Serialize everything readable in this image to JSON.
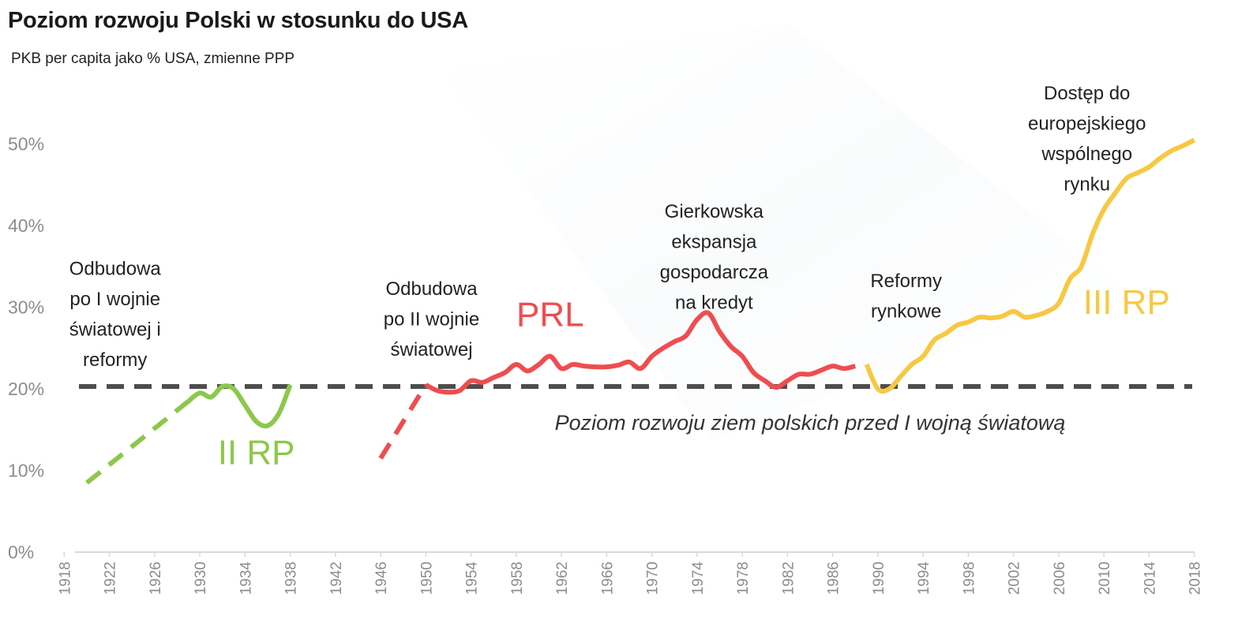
{
  "title": "Poziom rozwoju Polski w stosunku do USA",
  "subtitle": "PKB per capita jako % USA, zmienne PPP",
  "colors": {
    "green": "#8cc84b",
    "red": "#ef4d4f",
    "yellow": "#f8c843",
    "reference": "#4d4d4d",
    "axis": "#d9d9d9",
    "tick": "#8c8c8c"
  },
  "chart_data": {
    "type": "line",
    "ylim": [
      0,
      55
    ],
    "xlim": [
      1917,
      2019
    ],
    "yticks": [
      {
        "value": 0,
        "label": "0%"
      },
      {
        "value": 10,
        "label": "10%"
      },
      {
        "value": 20,
        "label": "20%"
      },
      {
        "value": 30,
        "label": "30%"
      },
      {
        "value": 40,
        "label": "40%"
      },
      {
        "value": 50,
        "label": "50%"
      }
    ],
    "xticks": [
      "1918",
      "1922",
      "1926",
      "1930",
      "1934",
      "1938",
      "1942",
      "1946",
      "1950",
      "1954",
      "1958",
      "1962",
      "1966",
      "1970",
      "1974",
      "1978",
      "1982",
      "1986",
      "1990",
      "1994",
      "1998",
      "2002",
      "2006",
      "2010",
      "2014",
      "2018"
    ],
    "reference_line": {
      "value": 20.3,
      "label": "Poziom rozwoju ziem polskich przed I wojną światową"
    },
    "series": [
      {
        "name": "II RP",
        "color": "green",
        "style": "dashed",
        "x": [
          1920,
          1929
        ],
        "y": [
          8.5,
          18.5
        ]
      },
      {
        "name": "II RP",
        "color": "green",
        "style": "solid",
        "x": [
          1929,
          1930,
          1931,
          1932,
          1933,
          1934,
          1935,
          1936,
          1937,
          1938
        ],
        "y": [
          18.5,
          19.5,
          19,
          20.3,
          20,
          18,
          16,
          15.5,
          17,
          20.5
        ]
      },
      {
        "name": "PRL",
        "color": "red",
        "style": "dashed",
        "x": [
          1946,
          1950
        ],
        "y": [
          11.5,
          20.5
        ]
      },
      {
        "name": "PRL",
        "color": "red",
        "style": "solid",
        "x": [
          1950,
          1951,
          1952,
          1953,
          1954,
          1955,
          1956,
          1957,
          1958,
          1959,
          1960,
          1961,
          1962,
          1963,
          1964,
          1965,
          1966,
          1967,
          1968,
          1969,
          1970,
          1971,
          1972,
          1973,
          1974,
          1975,
          1976,
          1977,
          1978,
          1979,
          1980,
          1981,
          1982,
          1983,
          1984,
          1985,
          1986,
          1987,
          1988
        ],
        "y": [
          20.5,
          19.8,
          19.6,
          19.8,
          21,
          20.8,
          21.4,
          22,
          23,
          22.2,
          23,
          24,
          22.5,
          23,
          22.8,
          22.7,
          22.7,
          22.9,
          23.3,
          22.5,
          24,
          25,
          25.8,
          26.5,
          28.5,
          29.3,
          27,
          25.2,
          24,
          22,
          21,
          20.2,
          21,
          21.8,
          21.8,
          22.3,
          22.8,
          22.5,
          22.8
        ]
      },
      {
        "name": "III RP",
        "color": "yellow",
        "style": "solid",
        "x": [
          1989,
          1990,
          1991,
          1992,
          1993,
          1994,
          1995,
          1996,
          1997,
          1998,
          1999,
          2000,
          2001,
          2002,
          2003,
          2004,
          2005,
          2006,
          2007,
          2008,
          2009,
          2010,
          2011,
          2012,
          2013,
          2014,
          2015,
          2016,
          2017,
          2018
        ],
        "y": [
          23,
          20,
          20,
          21.5,
          23,
          24,
          26,
          26.8,
          27.8,
          28.2,
          28.8,
          28.7,
          28.9,
          29.5,
          28.8,
          29,
          29.5,
          30.5,
          33.5,
          35,
          39,
          42,
          44,
          45.8,
          46.5,
          47.2,
          48.3,
          49.2,
          49.8,
          50.5
        ]
      }
    ],
    "era_labels": [
      {
        "text": "II RP",
        "color": "green",
        "x": 1935,
        "y": 10.8
      },
      {
        "text": "PRL",
        "color": "red",
        "x": 1961,
        "y": 27.7
      },
      {
        "text": "III RP",
        "color": "yellow",
        "x": 2012,
        "y": 29.2
      }
    ],
    "annotations": [
      {
        "lines": [
          "Odbudowa",
          "po I wojnie",
          "światowej i",
          "reformy"
        ],
        "x": 1922.5,
        "y": 34
      },
      {
        "lines": [
          "Odbudowa",
          "po II wojnie",
          "światowej"
        ],
        "x": 1950.5,
        "y": 31.5
      },
      {
        "lines": [
          "Gierkowska",
          "ekspansja",
          "gospodarcza",
          "na kredyt"
        ],
        "x": 1975.5,
        "y": 41
      },
      {
        "lines": [
          "Reformy",
          "rynkowe"
        ],
        "x": 1992.5,
        "y": 32.5
      },
      {
        "lines": [
          "Dostęp do",
          "europejskiego",
          "wspólnego",
          "rynku"
        ],
        "x": 2008.5,
        "y": 55.5
      }
    ]
  }
}
